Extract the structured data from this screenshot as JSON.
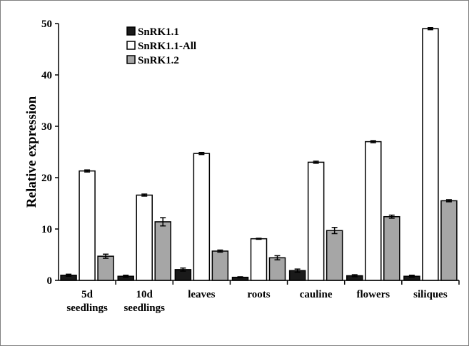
{
  "chart_data": {
    "type": "bar",
    "ylabel": "Relative expression",
    "xlabel": "",
    "ylim": [
      0,
      50
    ],
    "yticks": [
      0,
      10,
      20,
      30,
      40,
      50
    ],
    "grid": false,
    "legend_position": "top-left",
    "categories": [
      [
        "5d",
        "seedlings"
      ],
      [
        "10d",
        "seedlings"
      ],
      [
        "leaves"
      ],
      [
        "roots"
      ],
      [
        "cauline"
      ],
      [
        "flowers"
      ],
      [
        "siliques"
      ]
    ],
    "series": [
      {
        "name": "SnRK1.1",
        "color": "#1a1a1a",
        "values": [
          1.0,
          0.8,
          2.1,
          0.6,
          1.9,
          0.9,
          0.8
        ],
        "errors": [
          0.2,
          0.2,
          0.3,
          0.1,
          0.3,
          0.2,
          0.2
        ]
      },
      {
        "name": "SnRK1.1-All",
        "color": "#ffffff",
        "values": [
          21.3,
          16.6,
          24.7,
          8.1,
          23.0,
          27.0,
          49.0
        ],
        "errors": [
          0.2,
          0.2,
          0.2,
          0.1,
          0.2,
          0.2,
          0.2
        ]
      },
      {
        "name": "SnRK1.2",
        "color": "#a6a6a6",
        "values": [
          4.7,
          11.4,
          5.7,
          4.4,
          9.7,
          12.4,
          15.5
        ],
        "errors": [
          0.4,
          0.8,
          0.2,
          0.4,
          0.6,
          0.3,
          0.2
        ]
      }
    ]
  }
}
